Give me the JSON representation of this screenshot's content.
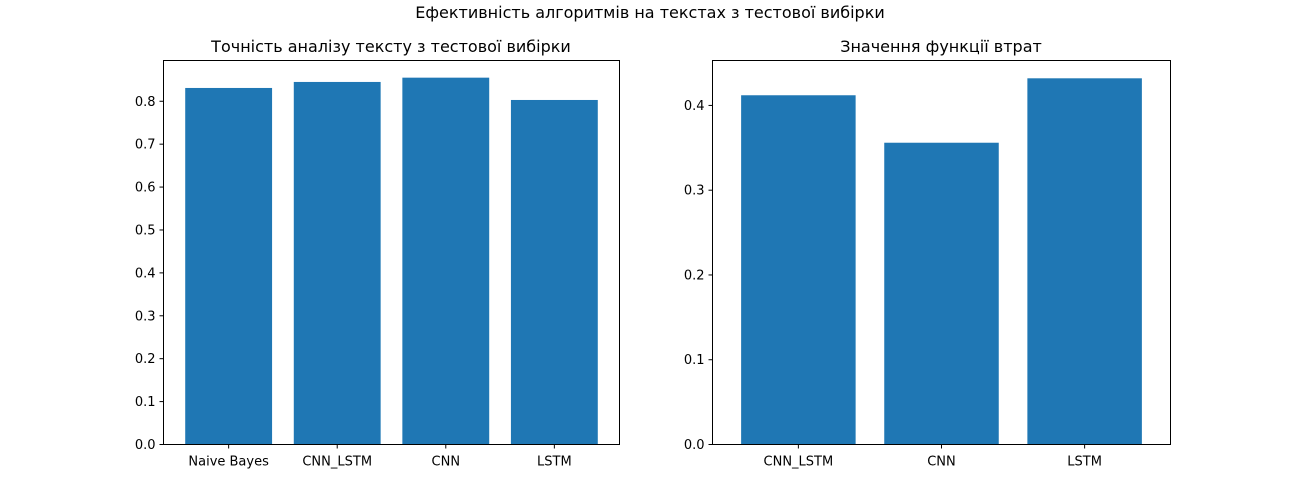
{
  "figure": {
    "suptitle": "Ефективність алгоритмів на текстах з тестової вибірки"
  },
  "chart_data": [
    {
      "type": "bar",
      "title": "Точність аналізу тексту з тестової вибірки",
      "xlabel": "",
      "ylabel": "",
      "categories": [
        "Naive Bayes",
        "CNN_LSTM",
        "CNN",
        "LSTM"
      ],
      "values": [
        0.831,
        0.845,
        0.855,
        0.803
      ],
      "ylim": [
        0,
        0.895
      ],
      "yticks": [
        0.0,
        0.1,
        0.2,
        0.3,
        0.4,
        0.5,
        0.6,
        0.7,
        0.8
      ],
      "ytick_labels": [
        "0.0",
        "0.1",
        "0.2",
        "0.3",
        "0.4",
        "0.5",
        "0.6",
        "0.7",
        "0.8"
      ],
      "color": "#1f77b4",
      "grid": false
    },
    {
      "type": "bar",
      "title": "Значення функції втрат",
      "xlabel": "",
      "ylabel": "",
      "categories": [
        "CNN_LSTM",
        "CNN",
        "LSTM"
      ],
      "values": [
        0.412,
        0.356,
        0.432
      ],
      "ylim": [
        0,
        0.453
      ],
      "yticks": [
        0.0,
        0.1,
        0.2,
        0.3,
        0.4
      ],
      "ytick_labels": [
        "0.0",
        "0.1",
        "0.2",
        "0.3",
        "0.4"
      ],
      "color": "#1f77b4",
      "grid": false
    }
  ]
}
